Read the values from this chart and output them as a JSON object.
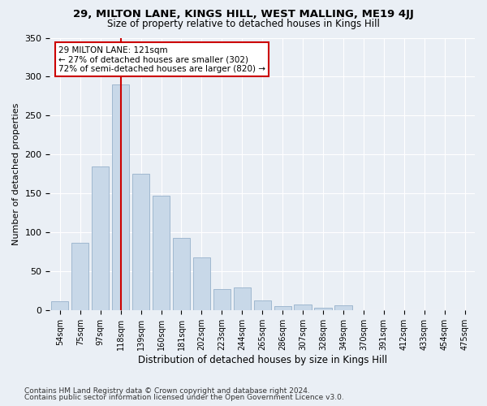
{
  "title": "29, MILTON LANE, KINGS HILL, WEST MALLING, ME19 4JJ",
  "subtitle": "Size of property relative to detached houses in Kings Hill",
  "xlabel": "Distribution of detached houses by size in Kings Hill",
  "ylabel": "Number of detached properties",
  "footnote1": "Contains HM Land Registry data © Crown copyright and database right 2024.",
  "footnote2": "Contains public sector information licensed under the Open Government Licence v3.0.",
  "bar_color": "#c8d8e8",
  "bar_edgecolor": "#a0b8d0",
  "vline_color": "#cc0000",
  "annotation_text": "29 MILTON LANE: 121sqm\n← 27% of detached houses are smaller (302)\n72% of semi-detached houses are larger (820) →",
  "annotation_box_color": "#ffffff",
  "annotation_box_edgecolor": "#cc0000",
  "bins": [
    "54sqm",
    "75sqm",
    "97sqm",
    "118sqm",
    "139sqm",
    "160sqm",
    "181sqm",
    "202sqm",
    "223sqm",
    "244sqm",
    "265sqm",
    "286sqm",
    "307sqm",
    "328sqm",
    "349sqm",
    "370sqm",
    "391sqm",
    "412sqm",
    "433sqm",
    "454sqm",
    "475sqm"
  ],
  "bar_heights": [
    12,
    87,
    185,
    290,
    175,
    147,
    93,
    68,
    27,
    30,
    13,
    6,
    8,
    3,
    7,
    0,
    0,
    0,
    0,
    0,
    0
  ],
  "ylim": [
    0,
    350
  ],
  "background_color": "#eaeff5",
  "plot_bg_color": "#eaeff5"
}
